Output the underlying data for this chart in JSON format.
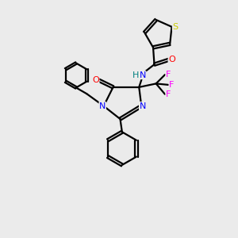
{
  "bg_color": "#ebebeb",
  "bond_color": "#000000",
  "bond_lw": 1.6,
  "atom_colors": {
    "S": "#cccc00",
    "O": "#ff0000",
    "N": "#0000ff",
    "F": "#ff00ff",
    "H": "#008080",
    "C": "#000000"
  },
  "figsize": [
    3.0,
    3.0
  ],
  "dpi": 100,
  "xlim": [
    0,
    10
  ],
  "ylim": [
    0,
    10
  ]
}
